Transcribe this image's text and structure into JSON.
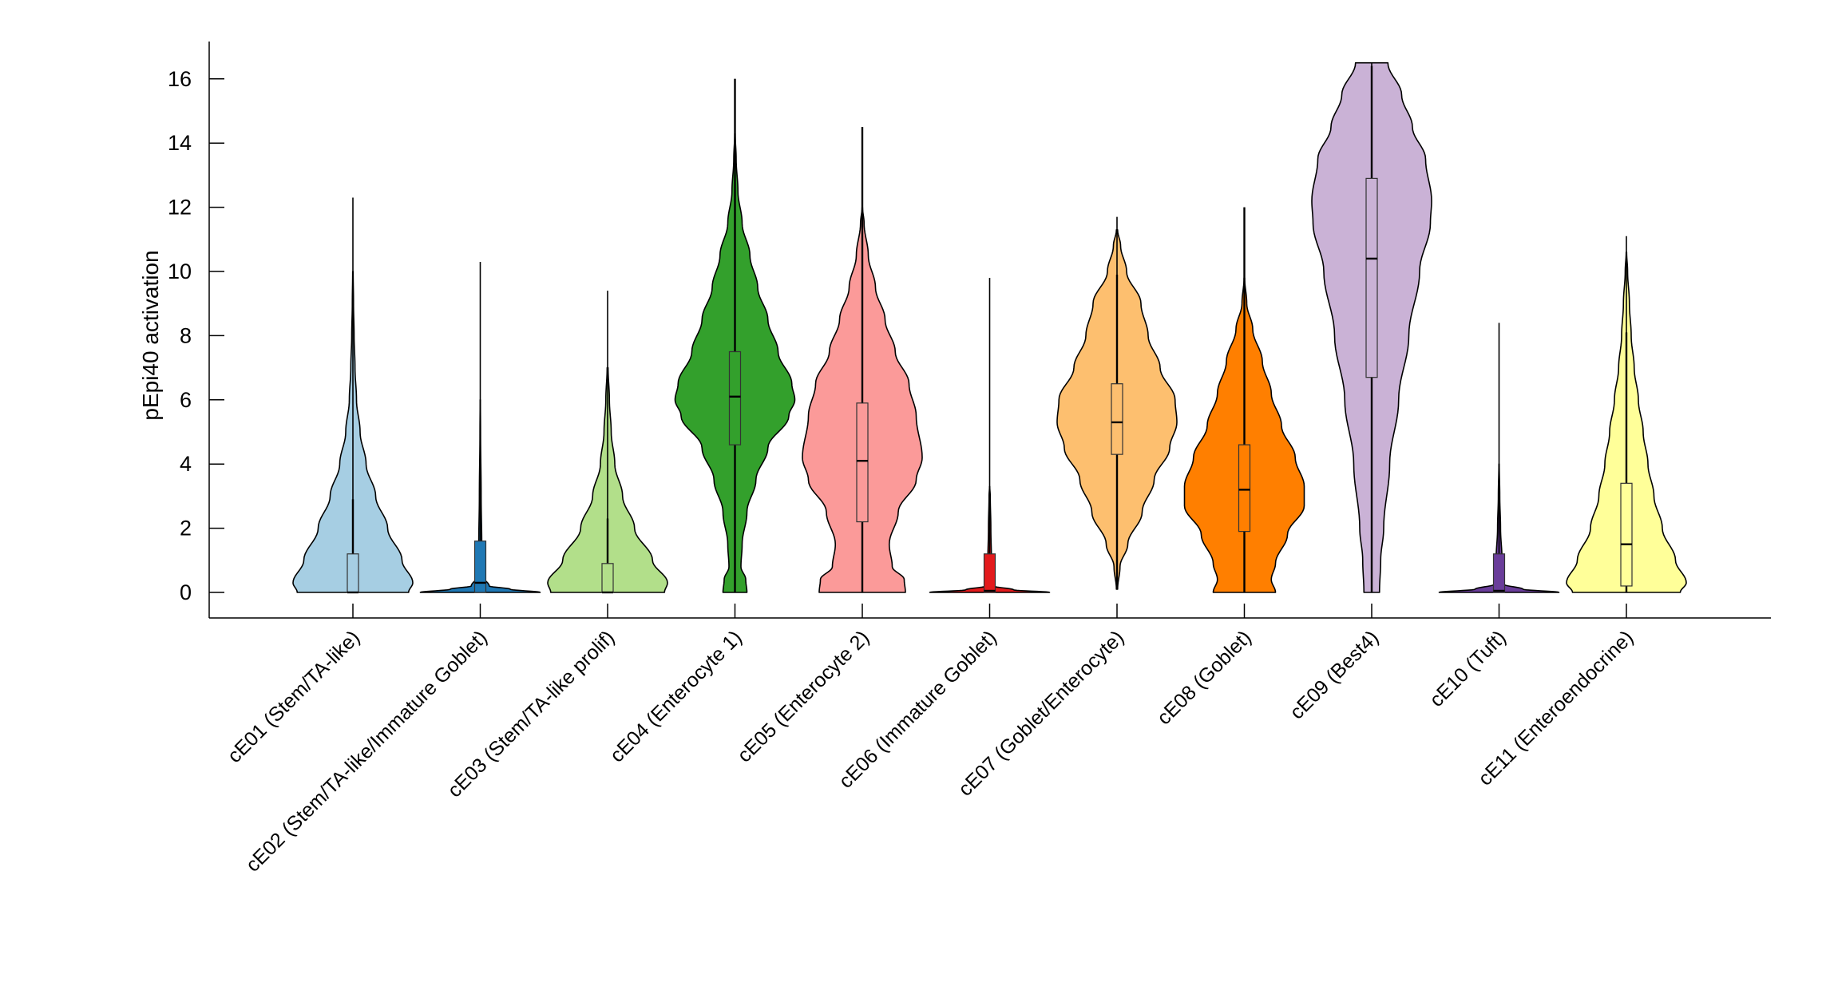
{
  "chart_data": {
    "type": "violin",
    "title": "",
    "xlabel": "",
    "ylabel": "pEpi40 activation",
    "ylim": [
      -0.8,
      17.2
    ],
    "yticks": [
      "0",
      "2",
      "4",
      "6",
      "8",
      "10",
      "12",
      "14",
      "16"
    ],
    "grid": false,
    "categories": [
      "cE01 (Stem/TA-like)",
      "cE02 (Stem/TA-like/Immature Goblet)",
      "cE03 (Stem/TA-like prolif)",
      "cE04 (Enterocyte 1)",
      "cE05 (Enterocyte 2)",
      "cE06 (Immature Goblet)",
      "cE07 (Goblet/Enterocyte)",
      "cE08 (Goblet)",
      "cE09 (Best4)",
      "cE10 (Tuft)",
      "cE11 (Enteroendocrine)"
    ],
    "colors": [
      "#a6cee3",
      "#1f78b4",
      "#b2df8a",
      "#33a02c",
      "#fb9a99",
      "#e31a1c",
      "#fdbf6f",
      "#ff7f00",
      "#cab2d6",
      "#6a3d9a",
      "#ffff99"
    ],
    "series": [
      {
        "q1": 0,
        "median": 0,
        "q3": 1.2,
        "whisker_low": 0,
        "whisker_high": 2.9,
        "max": 12.3,
        "density": [
          [
            0,
            0.93
          ],
          [
            0.3,
            1.0
          ],
          [
            1,
            0.82
          ],
          [
            2,
            0.58
          ],
          [
            3,
            0.38
          ],
          [
            4,
            0.22
          ],
          [
            5,
            0.12
          ],
          [
            6,
            0.06
          ],
          [
            7,
            0.035
          ],
          [
            8,
            0.02
          ],
          [
            9,
            0.01
          ],
          [
            10,
            0.004
          ]
        ]
      },
      {
        "q1": 0,
        "median": 0.3,
        "q3": 1.6,
        "whisker_low": 0,
        "whisker_high": 1.6,
        "max": 10.3,
        "density": [
          [
            0,
            1.0
          ],
          [
            0.1,
            0.5
          ],
          [
            0.2,
            0.15
          ],
          [
            0.5,
            0.04
          ],
          [
            1.5,
            0.025
          ],
          [
            3,
            0.015
          ],
          [
            5,
            0.005
          ],
          [
            6,
            0.002
          ]
        ]
      },
      {
        "q1": 0,
        "median": 0,
        "q3": 0.9,
        "whisker_low": 0,
        "whisker_high": 2.3,
        "max": 9.4,
        "density": [
          [
            0,
            0.95
          ],
          [
            0.3,
            1.0
          ],
          [
            1,
            0.75
          ],
          [
            2,
            0.45
          ],
          [
            3,
            0.25
          ],
          [
            4,
            0.12
          ],
          [
            5,
            0.06
          ],
          [
            6,
            0.03
          ],
          [
            7,
            0.008
          ]
        ]
      },
      {
        "q1": 4.6,
        "median": 6.1,
        "q3": 7.5,
        "whisker_low": 0,
        "whisker_high": 16,
        "max": 16,
        "density": [
          [
            0,
            0.2
          ],
          [
            0.4,
            0.18
          ],
          [
            0.8,
            0.1
          ],
          [
            1.5,
            0.12
          ],
          [
            2.5,
            0.2
          ],
          [
            3.5,
            0.35
          ],
          [
            4.5,
            0.55
          ],
          [
            5.5,
            0.9
          ],
          [
            6,
            1.0
          ],
          [
            6.5,
            0.95
          ],
          [
            7.5,
            0.72
          ],
          [
            8.5,
            0.55
          ],
          [
            9.5,
            0.38
          ],
          [
            10.5,
            0.25
          ],
          [
            11.5,
            0.12
          ],
          [
            12.5,
            0.05
          ],
          [
            13.5,
            0.02
          ],
          [
            14.3,
            0.004
          ]
        ]
      },
      {
        "q1": 2.2,
        "median": 4.1,
        "q3": 5.9,
        "whisker_low": 0,
        "whisker_high": 14.5,
        "max": 14.5,
        "density": [
          [
            0,
            0.72
          ],
          [
            0.4,
            0.7
          ],
          [
            0.8,
            0.5
          ],
          [
            1.5,
            0.45
          ],
          [
            2.5,
            0.6
          ],
          [
            3.5,
            0.9
          ],
          [
            4.2,
            1.0
          ],
          [
            5.5,
            0.9
          ],
          [
            6.5,
            0.78
          ],
          [
            7.5,
            0.55
          ],
          [
            8.5,
            0.38
          ],
          [
            9.5,
            0.22
          ],
          [
            10.5,
            0.1
          ],
          [
            11.5,
            0.03
          ],
          [
            12,
            0.004
          ]
        ]
      },
      {
        "q1": 0,
        "median": 0.05,
        "q3": 1.2,
        "whisker_low": 0,
        "whisker_high": 1.2,
        "max": 9.8,
        "density": [
          [
            0,
            1.0
          ],
          [
            0.08,
            0.4
          ],
          [
            0.2,
            0.06
          ],
          [
            1,
            0.03
          ],
          [
            2,
            0.02
          ],
          [
            3,
            0.01
          ],
          [
            3.3,
            0.002
          ]
        ]
      },
      {
        "q1": 4.3,
        "median": 5.3,
        "q3": 6.5,
        "whisker_low": 0.1,
        "whisker_high": 9.9,
        "max": 11.7,
        "density": [
          [
            0.1,
            0.01
          ],
          [
            0.8,
            0.05
          ],
          [
            1.5,
            0.18
          ],
          [
            2.5,
            0.42
          ],
          [
            3.5,
            0.62
          ],
          [
            4.5,
            0.88
          ],
          [
            5.3,
            1.0
          ],
          [
            6,
            0.97
          ],
          [
            7,
            0.72
          ],
          [
            8,
            0.52
          ],
          [
            9,
            0.4
          ],
          [
            10,
            0.16
          ],
          [
            10.8,
            0.06
          ],
          [
            11.3,
            0.01
          ]
        ]
      },
      {
        "q1": 1.9,
        "median": 3.2,
        "q3": 4.6,
        "whisker_low": 0,
        "whisker_high": 12,
        "max": 12,
        "density": [
          [
            0,
            0.52
          ],
          [
            0.4,
            0.45
          ],
          [
            0.9,
            0.52
          ],
          [
            1.8,
            0.72
          ],
          [
            2.7,
            1.0
          ],
          [
            3.3,
            1.0
          ],
          [
            4.2,
            0.85
          ],
          [
            5.2,
            0.62
          ],
          [
            6.2,
            0.45
          ],
          [
            7.2,
            0.3
          ],
          [
            8.2,
            0.14
          ],
          [
            9,
            0.04
          ],
          [
            9.8,
            0.005
          ]
        ]
      },
      {
        "q1": 6.7,
        "median": 10.4,
        "q3": 12.9,
        "whisker_low": 0,
        "whisker_high": 16.4,
        "max": 16.5,
        "density": [
          [
            0,
            0.13
          ],
          [
            1,
            0.15
          ],
          [
            2,
            0.2
          ],
          [
            4,
            0.3
          ],
          [
            6,
            0.45
          ],
          [
            8,
            0.62
          ],
          [
            10,
            0.8
          ],
          [
            11.5,
            0.98
          ],
          [
            12.2,
            1.0
          ],
          [
            13.5,
            0.9
          ],
          [
            14.5,
            0.68
          ],
          [
            15.5,
            0.5
          ],
          [
            16.5,
            0.27
          ]
        ]
      },
      {
        "q1": 0,
        "median": 0.05,
        "q3": 1.2,
        "whisker_low": 0,
        "whisker_high": 1.2,
        "max": 8.4,
        "density": [
          [
            0,
            1.0
          ],
          [
            0.1,
            0.4
          ],
          [
            0.25,
            0.08
          ],
          [
            1,
            0.05
          ],
          [
            2,
            0.025
          ],
          [
            3,
            0.012
          ],
          [
            4,
            0.003
          ]
        ]
      },
      {
        "q1": 0.2,
        "median": 1.5,
        "q3": 3.4,
        "whisker_low": 0,
        "whisker_high": 8.1,
        "max": 11.1,
        "density": [
          [
            0,
            0.9
          ],
          [
            0.3,
            1.0
          ],
          [
            1,
            0.82
          ],
          [
            2,
            0.6
          ],
          [
            3,
            0.46
          ],
          [
            4,
            0.36
          ],
          [
            5,
            0.28
          ],
          [
            6,
            0.2
          ],
          [
            7,
            0.13
          ],
          [
            8,
            0.08
          ],
          [
            9,
            0.05
          ],
          [
            10,
            0.02
          ],
          [
            10.6,
            0.004
          ]
        ]
      }
    ]
  }
}
